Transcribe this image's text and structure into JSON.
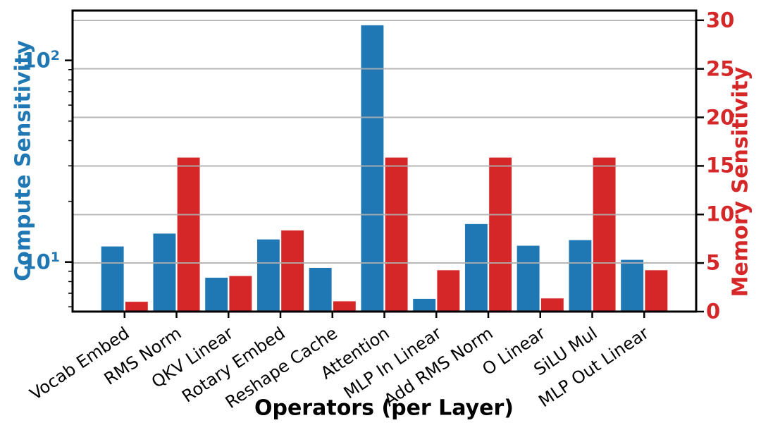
{
  "chart_data": {
    "type": "bar",
    "title": "",
    "xlabel": "Operators (per Layer)",
    "categories": [
      "Vocab Embed",
      "RMS Norm",
      "QKV Linear",
      "Rotary Embed",
      "Reshape Cache",
      "Attention",
      "MLP In Linear",
      "Add RMS Norm",
      "O Linear",
      "SiLU Mul",
      "MLP Out Linear"
    ],
    "series": [
      {
        "name": "Compute Sensitivity",
        "axis": "left",
        "color": "#1f77b4",
        "values": [
          12.0,
          13.9,
          8.4,
          13.0,
          9.4,
          150,
          6.6,
          15.5,
          12.1,
          12.9,
          10.3
        ]
      },
      {
        "name": "Memory Sensitivity",
        "axis": "right",
        "color": "#d62728",
        "values": [
          1.05,
          15.9,
          3.7,
          8.4,
          1.1,
          15.9,
          4.3,
          15.9,
          1.4,
          15.9,
          4.3
        ]
      }
    ],
    "left_axis": {
      "label": "Compute Sensitivity",
      "scale": "log",
      "ylim": [
        5.68,
        176.6
      ],
      "major_ticks": [
        {
          "value": 10,
          "label": "10^1"
        },
        {
          "value": 100,
          "label": "10^2"
        }
      ],
      "minor_ticks": [
        6,
        7,
        8,
        9,
        20,
        30,
        40,
        50,
        60,
        70,
        80,
        90
      ],
      "color": "#1f77b4"
    },
    "right_axis": {
      "label": "Memory Sensitivity",
      "scale": "linear",
      "ylim": [
        0,
        31
      ],
      "ticks": [
        0,
        5,
        10,
        15,
        20,
        25,
        30
      ],
      "color": "#d62728"
    },
    "grid": {
      "axis": "y",
      "values": [
        5,
        10,
        15,
        20,
        25,
        30
      ],
      "color": "#b0b0b0"
    },
    "legend": null,
    "frame_color": "#000000"
  }
}
